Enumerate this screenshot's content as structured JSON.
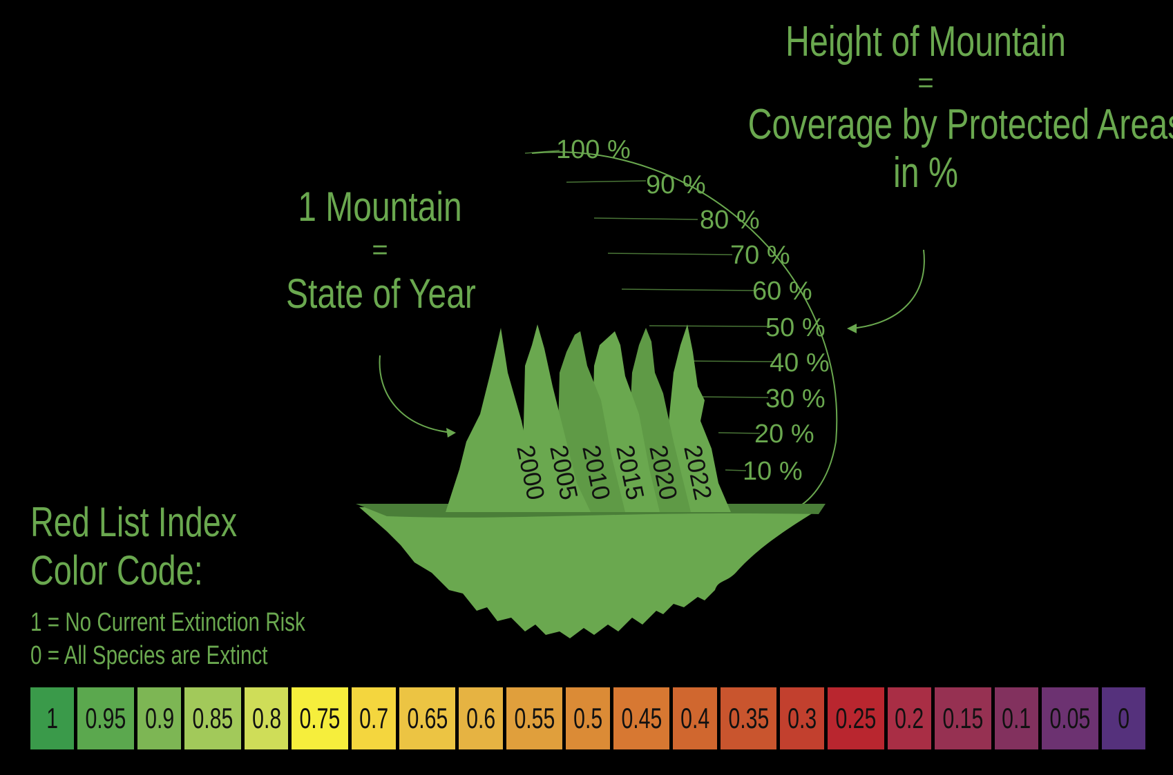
{
  "header": {
    "title_line1": "Height of Mountain",
    "equals": "=",
    "title_line2": "Coverage by Protected Areas",
    "title_line3": "in %"
  },
  "left_caption": {
    "line1": "1 Mountain",
    "equals": "=",
    "line2": "State of Year"
  },
  "scale_labels": [
    "100 %",
    "90 %",
    "80 %",
    "70 %",
    "60 %",
    "50 %",
    "40 %",
    "30 %",
    "20 %",
    "10 %"
  ],
  "years": [
    "2000",
    "2005",
    "2010",
    "2015",
    "2020",
    "2022"
  ],
  "legend": {
    "title_line1": "Red List Index",
    "title_line2": "Color Code:",
    "note1": "1 = No Current Extinction Risk",
    "note2": "0 = All Species are Extinct"
  },
  "color_scale": [
    {
      "label": "1",
      "color": "#3a9a4a"
    },
    {
      "label": "0.95",
      "color": "#5ba84e"
    },
    {
      "label": "0.9",
      "color": "#7db654"
    },
    {
      "label": "0.85",
      "color": "#a2c95a"
    },
    {
      "label": "0.8",
      "color": "#cfdd58"
    },
    {
      "label": "0.75",
      "color": "#f6ee3c"
    },
    {
      "label": "0.7",
      "color": "#f4d63e"
    },
    {
      "label": "0.65",
      "color": "#ecc443"
    },
    {
      "label": "0.6",
      "color": "#e6b342"
    },
    {
      "label": "0.55",
      "color": "#e09f3c"
    },
    {
      "label": "0.5",
      "color": "#db8b36"
    },
    {
      "label": "0.45",
      "color": "#d77832"
    },
    {
      "label": "0.4",
      "color": "#d0672f"
    },
    {
      "label": "0.35",
      "color": "#c9552e"
    },
    {
      "label": "0.3",
      "color": "#c2402e"
    },
    {
      "label": "0.25",
      "color": "#b9262f"
    },
    {
      "label": "0.2",
      "color": "#a92e45"
    },
    {
      "label": "0.15",
      "color": "#963152"
    },
    {
      "label": "0.1",
      "color": "#82315e"
    },
    {
      "label": "0.05",
      "color": "#6c3271"
    },
    {
      "label": "0",
      "color": "#55317c"
    }
  ],
  "colors": {
    "text_green": "#6aa84f",
    "mountain": "#6aa84f",
    "mountain_dark": "#4a7e38",
    "background": "#000000"
  }
}
